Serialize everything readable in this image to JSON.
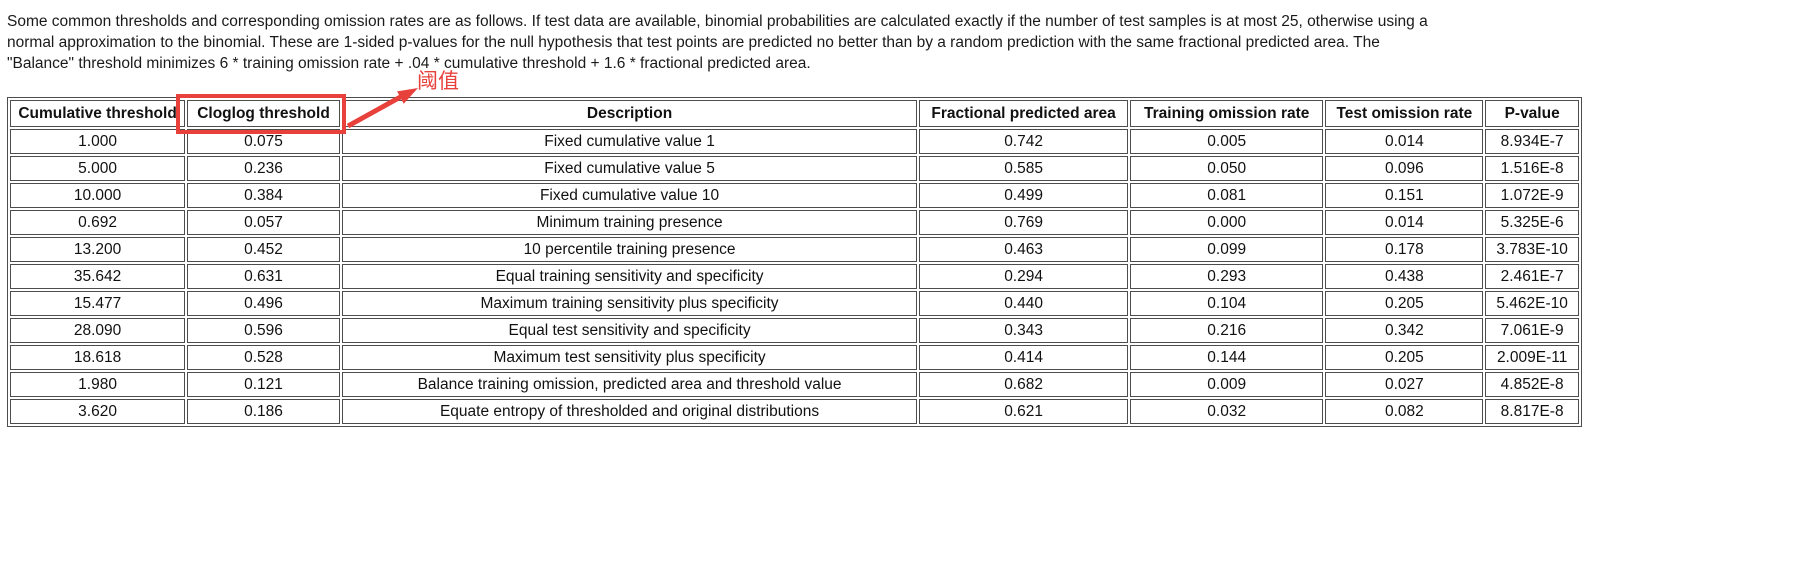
{
  "intro": {
    "lines": [
      "Some common thresholds and corresponding omission rates are as follows. If test data are available, binomial probabilities are calculated exactly if the number of test samples is at most 25, otherwise using a",
      "normal approximation to the binomial. These are 1-sided p-values for the null hypothesis that test points are predicted no better than by a random prediction with the same fractional predicted area. The",
      "\"Balance\" threshold minimizes 6 * training omission rate + .04 * cumulative threshold + 1.6 * fractional predicted area."
    ]
  },
  "table": {
    "headers": [
      "Cumulative threshold",
      "Cloglog threshold",
      "Description",
      "Fractional predicted area",
      "Training omission rate",
      "Test omission rate",
      "P-value"
    ],
    "rows": [
      [
        "1.000",
        "0.075",
        "Fixed cumulative value 1",
        "0.742",
        "0.005",
        "0.014",
        "8.934E-7"
      ],
      [
        "5.000",
        "0.236",
        "Fixed cumulative value 5",
        "0.585",
        "0.050",
        "0.096",
        "1.516E-8"
      ],
      [
        "10.000",
        "0.384",
        "Fixed cumulative value 10",
        "0.499",
        "0.081",
        "0.151",
        "1.072E-9"
      ],
      [
        "0.692",
        "0.057",
        "Minimum training presence",
        "0.769",
        "0.000",
        "0.014",
        "5.325E-6"
      ],
      [
        "13.200",
        "0.452",
        "10 percentile training presence",
        "0.463",
        "0.099",
        "0.178",
        "3.783E-10"
      ],
      [
        "35.642",
        "0.631",
        "Equal training sensitivity and specificity",
        "0.294",
        "0.293",
        "0.438",
        "2.461E-7"
      ],
      [
        "15.477",
        "0.496",
        "Maximum training sensitivity plus specificity",
        "0.440",
        "0.104",
        "0.205",
        "5.462E-10"
      ],
      [
        "28.090",
        "0.596",
        "Equal test sensitivity and specificity",
        "0.343",
        "0.216",
        "0.342",
        "7.061E-9"
      ],
      [
        "18.618",
        "0.528",
        "Maximum test sensitivity plus specificity",
        "0.414",
        "0.144",
        "0.205",
        "2.009E-11"
      ],
      [
        "1.980",
        "0.121",
        "Balance training omission, predicted area and threshold value",
        "0.682",
        "0.009",
        "0.027",
        "4.852E-8"
      ],
      [
        "3.620",
        "0.186",
        "Equate entropy of thresholded and original distributions",
        "0.621",
        "0.032",
        "0.082",
        "8.817E-8"
      ]
    ]
  },
  "annotation": {
    "label": "阈值",
    "color": "#e8413c",
    "highlighted_header": "Cloglog threshold"
  }
}
